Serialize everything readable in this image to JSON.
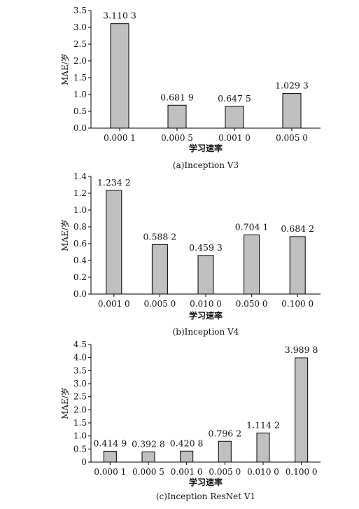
{
  "chart_data": [
    {
      "type": "bar",
      "caption": "(a)Inception V3",
      "xlabel": "学习速率",
      "ylabel": "MAE/岁",
      "ylim": [
        0,
        3.5
      ],
      "yticks": [
        "0.0",
        "0.5",
        "1.0",
        "1.5",
        "2.0",
        "2.5",
        "3.0",
        "3.5"
      ],
      "categories": [
        "0.000 1",
        "0.000 5",
        "0.001 0",
        "0.005 0"
      ],
      "values": [
        3.1103,
        0.6819,
        0.6475,
        1.0293
      ],
      "value_labels": [
        "3.110 3",
        "0.681 9",
        "0.647 5",
        "1.029 3"
      ],
      "bar_color": "#c0c0c0",
      "grid": false
    },
    {
      "type": "bar",
      "caption": "(b)Inception V4",
      "xlabel": "学习速率",
      "ylabel": "MAE/岁",
      "ylim": [
        0,
        1.4
      ],
      "yticks": [
        "0.0",
        "0.2",
        "0.4",
        "0.6",
        "0.8",
        "1.0",
        "1.2",
        "1.4"
      ],
      "categories": [
        "0.001 0",
        "0.005 0",
        "0.010 0",
        "0.050 0",
        "0.100 0"
      ],
      "values": [
        1.2342,
        0.5882,
        0.4593,
        0.7041,
        0.6842
      ],
      "value_labels": [
        "1.234 2",
        "0.588 2",
        "0.459 3",
        "0.704 1",
        "0.684 2"
      ],
      "bar_color": "#c0c0c0",
      "grid": false
    },
    {
      "type": "bar",
      "caption": "(c)Inception ResNet V1",
      "xlabel": "学习速率",
      "ylabel": "MAE/岁",
      "ylim": [
        0,
        4.5
      ],
      "yticks": [
        "0",
        "0.5",
        "1.0",
        "1.5",
        "2.0",
        "2.5",
        "3.0",
        "3.5",
        "4.0",
        "4.5"
      ],
      "categories": [
        "0.000 1",
        "0.000 5",
        "0.001 0",
        "0.005 0",
        "0.010 0",
        "0.100 0"
      ],
      "values": [
        0.4149,
        0.3928,
        0.4208,
        0.7962,
        1.1142,
        3.9898
      ],
      "value_labels": [
        "0.414 9",
        "0.392 8",
        "0.420 8",
        "0.796 2",
        "1.114 2",
        "3.989 8"
      ],
      "bar_color": "#c0c0c0",
      "grid": false
    }
  ]
}
